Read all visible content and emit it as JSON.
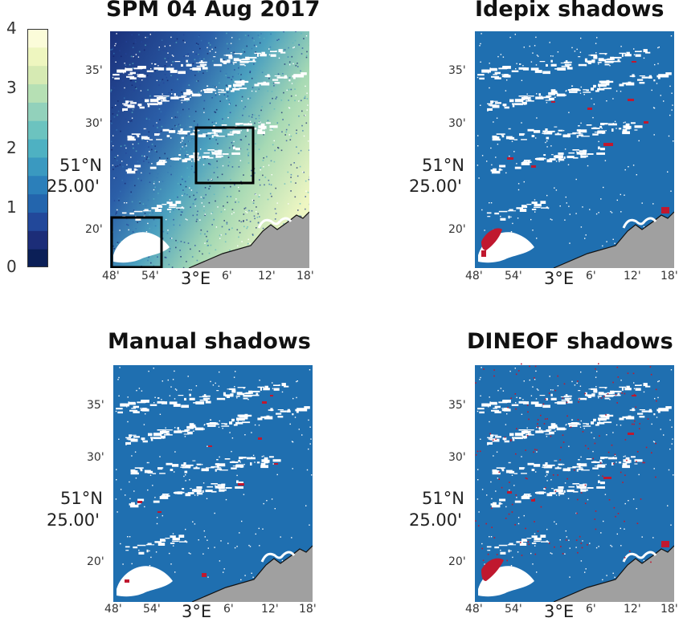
{
  "colorbar": {
    "ticks": [
      "4",
      "3",
      "2",
      "1",
      "0"
    ],
    "colors": [
      "#0b1f57",
      "#1c2d78",
      "#22489a",
      "#2365ad",
      "#2b7fba",
      "#3a99c0",
      "#4eb1c2",
      "#6cc3bf",
      "#92d1bb",
      "#b6e0b4",
      "#d6eab3",
      "#eef6bf",
      "#fbfcd9"
    ]
  },
  "panels": [
    {
      "title": "SPM 04 Aug 2017",
      "kind": "spm",
      "lat_ticks": [
        "35'",
        "30'",
        "20'"
      ],
      "lat_label_deg": "51°N",
      "lat_label_min": "25.00'",
      "lon_ticks": [
        "48'",
        "54'",
        "6'",
        "12'",
        "18'"
      ],
      "lon_label": "3°E"
    },
    {
      "title": "Idepix shadows",
      "kind": "mask",
      "lat_ticks": [
        "35'",
        "30'",
        "20'"
      ],
      "lat_label_deg": "51°N",
      "lat_label_min": "25.00'",
      "lon_ticks": [
        "48'",
        "54'",
        "6'",
        "12'",
        "18'"
      ],
      "lon_label": "3°E"
    },
    {
      "title": "Manual shadows",
      "kind": "mask",
      "lat_ticks": [
        "35'",
        "30'",
        "20'"
      ],
      "lat_label_deg": "51°N",
      "lat_label_min": "25.00'",
      "lon_ticks": [
        "48'",
        "54'",
        "6'",
        "12'",
        "18'"
      ],
      "lon_label": "3°E"
    },
    {
      "title": "DINEOF shadows",
      "kind": "mask",
      "lat_ticks": [
        "35'",
        "30'",
        "20'"
      ],
      "lat_label_deg": "51°N",
      "lat_label_min": "25.00'",
      "lon_ticks": [
        "48'",
        "54'",
        "6'",
        "12'",
        "18'"
      ],
      "lon_label": "3°E"
    }
  ],
  "colors": {
    "sea_mask": "#1f6fb0",
    "shadow": "#c0182f",
    "cloud": "#ffffff",
    "land": "#a0a0a0",
    "coast": "#111111"
  }
}
